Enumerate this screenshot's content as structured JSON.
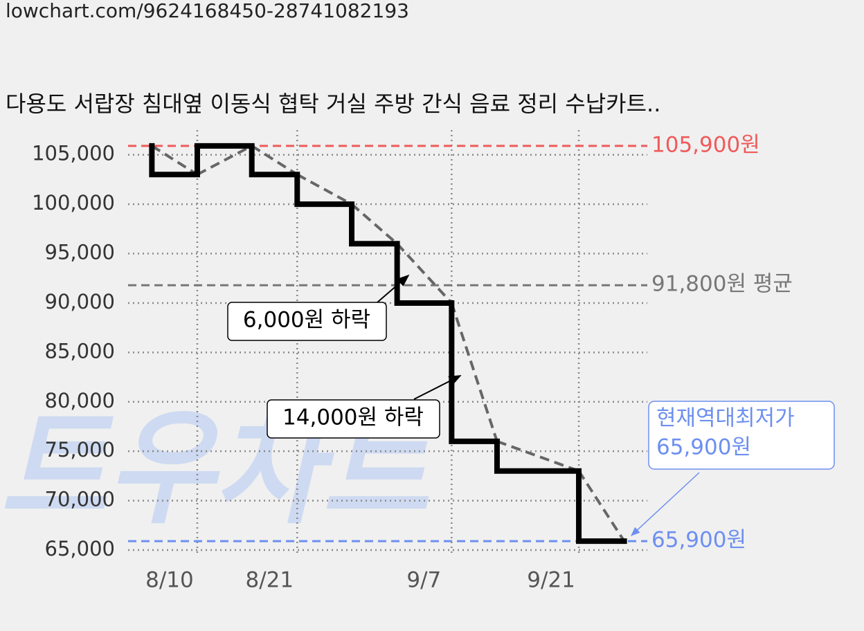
{
  "header": {
    "url": "lowchart.com/9624168450-28741082193"
  },
  "chart_data": {
    "type": "step",
    "title": "다용도 서랍장 침대옆 이동식 협탁 거실 주방 간식 음료 정리 수납카트..",
    "watermark": "트우차트",
    "x": [
      "8/5",
      "8/5",
      "8/10",
      "8/16",
      "8/21",
      "8/27",
      "9/1",
      "9/7",
      "9/12",
      "9/21",
      "9/26"
    ],
    "series": [
      {
        "color": "#000000",
        "values": [
          105900,
          103000,
          105900,
          103000,
          100000,
          96000,
          90000,
          76000,
          73000,
          65900,
          65900
        ]
      }
    ],
    "trend_color": "#666666",
    "xlim": [
      "8/2",
      "9/29"
    ],
    "xticks": [
      "8/10",
      "8/21",
      "9/7",
      "9/21"
    ],
    "ylim": [
      65000,
      107500
    ],
    "yticks": [
      {
        "value": 65000,
        "label": "65,000"
      },
      {
        "value": 70000,
        "label": "70,000"
      },
      {
        "value": 75000,
        "label": "75,000"
      },
      {
        "value": 80000,
        "label": "80,000"
      },
      {
        "value": 85000,
        "label": "85,000"
      },
      {
        "value": 90000,
        "label": "90,000"
      },
      {
        "value": 95000,
        "label": "95,000"
      },
      {
        "value": 100000,
        "label": "100,000"
      },
      {
        "value": 105000,
        "label": "105,000"
      }
    ],
    "grid": true,
    "reference_lines": [
      {
        "value": 105900,
        "label": "105,900원",
        "color": "#f05a5a"
      },
      {
        "value": 91800,
        "label": "91,800원 평균",
        "color": "#777777"
      },
      {
        "value": 65900,
        "label": "65,900원",
        "color": "#6d8ff0"
      }
    ],
    "annotations": [
      {
        "text": "6,000원 하락"
      },
      {
        "text": "14,000원 하락"
      },
      {
        "lines": [
          "현재역대최저가",
          "65,900원"
        ]
      }
    ]
  }
}
